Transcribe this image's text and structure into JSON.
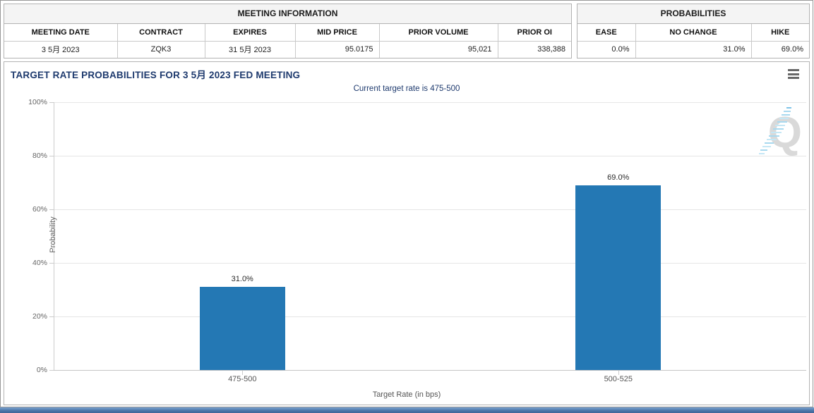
{
  "meeting_information": {
    "title": "MEETING INFORMATION",
    "columns": [
      "MEETING DATE",
      "CONTRACT",
      "EXPIRES",
      "MID PRICE",
      "PRIOR VOLUME",
      "PRIOR OI"
    ],
    "row": [
      "3 5月 2023",
      "ZQK3",
      "31 5月 2023",
      "95.0175",
      "95,021",
      "338,388"
    ]
  },
  "probabilities": {
    "title": "PROBABILITIES",
    "columns": [
      "EASE",
      "NO CHANGE",
      "HIKE"
    ],
    "row": [
      "0.0%",
      "31.0%",
      "69.0%"
    ]
  },
  "chart": {
    "title": "TARGET RATE PROBABILITIES FOR 3 5月 2023 FED MEETING",
    "subtitle": "Current target rate is 475-500",
    "watermark_letter": "Q"
  },
  "chart_data": {
    "type": "bar",
    "categories": [
      "475-500",
      "500-525"
    ],
    "values": [
      31.0,
      69.0
    ],
    "data_labels": [
      "31.0%",
      "69.0%"
    ],
    "title": "TARGET RATE PROBABILITIES FOR 3 5月 2023 FED MEETING",
    "subtitle": "Current target rate is 475-500",
    "xlabel": "Target Rate (in bps)",
    "ylabel": "Probability",
    "ylim": [
      0,
      100
    ],
    "ytick_percent": [
      0,
      20,
      40,
      60,
      80,
      100
    ],
    "ytick_labels": [
      "0%",
      "20%",
      "40%",
      "60%",
      "80%",
      "100%"
    ],
    "grid": true,
    "legend": "none",
    "bar_color": "#2478b4"
  },
  "colors": {
    "bar": "#2478b4",
    "title_navy": "#1e3a6e",
    "grid": "#e6e6e6",
    "axis": "#cccccc",
    "footer_blue": "#4a74a7"
  }
}
